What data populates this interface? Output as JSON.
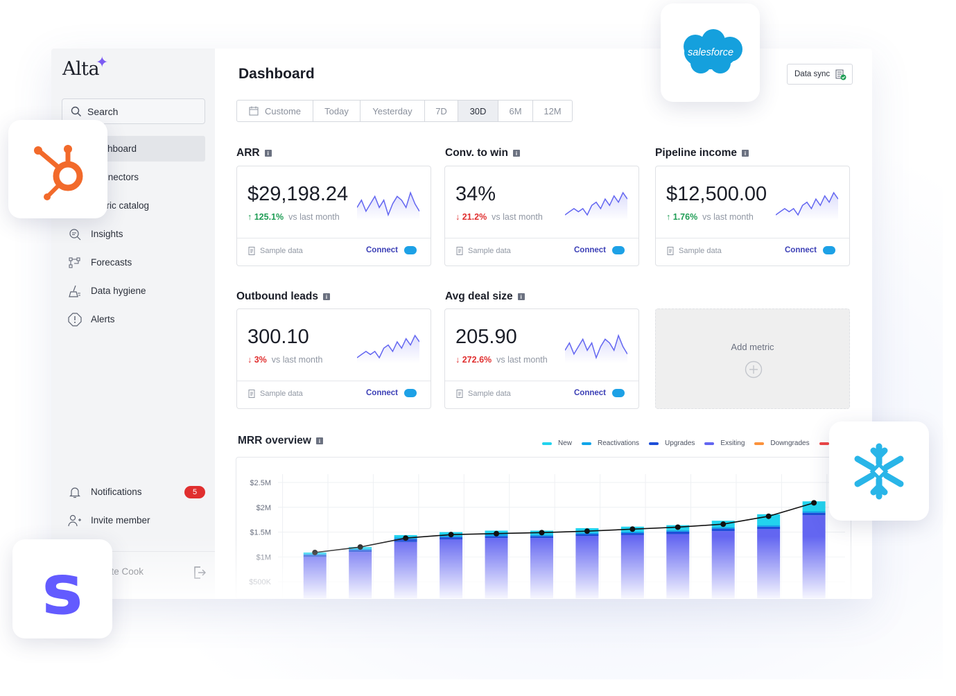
{
  "app": {
    "logo": "Alta",
    "page_title": "Dashboard"
  },
  "sidebar": {
    "search_placeholder": "Search",
    "items": [
      {
        "label": "Dashboard",
        "icon": "grid-icon",
        "active": true
      },
      {
        "label": "Connectors",
        "icon": "plug-icon"
      },
      {
        "label": "Metric catalog",
        "icon": "book-icon"
      },
      {
        "label": "Insights",
        "icon": "insights-icon"
      },
      {
        "label": "Forecasts",
        "icon": "forecast-icon"
      },
      {
        "label": "Data hygiene",
        "icon": "broom-icon"
      },
      {
        "label": "Alerts",
        "icon": "alert-icon"
      }
    ],
    "notifications": {
      "label": "Notifications",
      "count": "5"
    },
    "invite_label": "Invite member",
    "user_name": "Kate Cook"
  },
  "header": {
    "data_sync_label": "Data sync"
  },
  "date_range": {
    "options": [
      "Custome",
      "Today",
      "Yesterday",
      "7D",
      "30D",
      "6M",
      "12M"
    ],
    "selected": "30D"
  },
  "metrics": [
    {
      "title": "ARR",
      "value": "$29,198.24",
      "delta": "125.1%",
      "direction": "up",
      "delta_suffix": "vs last month",
      "footer": "Sample data",
      "action": "Connect",
      "spark": [
        6,
        8,
        5,
        7,
        9,
        6,
        8,
        4,
        7,
        9,
        8,
        6,
        10,
        7,
        5
      ]
    },
    {
      "title": "Conv. to win",
      "value": "34%",
      "delta": "21.2%",
      "direction": "down",
      "delta_suffix": "vs last month",
      "footer": "Sample data",
      "action": "Connect",
      "spark": [
        3,
        4,
        5,
        4,
        5,
        3,
        6,
        7,
        5,
        8,
        6,
        9,
        7,
        10,
        8
      ]
    },
    {
      "title": "Pipeline income",
      "value": "$12,500.00",
      "delta": "1.76%",
      "direction": "up",
      "delta_suffix": "vs last month",
      "footer": "Sample data",
      "action": "Connect",
      "spark": [
        3,
        4,
        5,
        4,
        5,
        3,
        6,
        7,
        5,
        8,
        6,
        9,
        7,
        10,
        8
      ]
    },
    {
      "title": "Outbound leads",
      "value": "300.10",
      "delta": "3%",
      "direction": "down",
      "delta_suffix": "vs last month",
      "footer": "Sample data",
      "action": "Connect",
      "spark": [
        3,
        4,
        5,
        4,
        5,
        3,
        6,
        7,
        5,
        8,
        6,
        9,
        7,
        10,
        8
      ]
    },
    {
      "title": "Avg deal size",
      "value": "205.90",
      "delta": "272.6%",
      "direction": "down",
      "delta_suffix": "vs last month",
      "footer": "Sample data",
      "action": "Connect",
      "spark": [
        6,
        8,
        5,
        7,
        9,
        6,
        8,
        4,
        7,
        9,
        8,
        6,
        10,
        7,
        5
      ]
    }
  ],
  "add_metric_label": "Add metric",
  "mrr": {
    "title": "MRR overview",
    "legend": [
      {
        "name": "New",
        "color": "#22d3ee"
      },
      {
        "name": "Reactivations",
        "color": "#0ea5e9"
      },
      {
        "name": "Upgrades",
        "color": "#1d4ed8"
      },
      {
        "name": "Exsiting",
        "color": "#6366f1"
      },
      {
        "name": "Downgrades",
        "color": "#fb923c"
      },
      {
        "name": "",
        "color": "#ef4444"
      }
    ]
  },
  "chart_data": {
    "type": "bar",
    "title": "MRR overview",
    "y_ticks": [
      "$2.5M",
      "$2M",
      "$1.5M",
      "$1M",
      "$500K"
    ],
    "ylim": [
      0,
      2500000
    ],
    "stacked": true,
    "series": [
      {
        "name": "Exsiting",
        "color": "#6366f1",
        "values": [
          1000000,
          1100000,
          1300000,
          1350000,
          1380000,
          1380000,
          1420000,
          1440000,
          1460000,
          1520000,
          1560000,
          1840000
        ]
      },
      {
        "name": "Upgrades",
        "color": "#1d4ed8",
        "values": [
          40000,
          40000,
          60000,
          50000,
          40000,
          40000,
          40000,
          40000,
          50000,
          50000,
          50000,
          50000
        ]
      },
      {
        "name": "Reactivations",
        "color": "#0ea5e9",
        "values": [
          20000,
          20000,
          30000,
          30000,
          40000,
          30000,
          30000,
          30000,
          30000,
          30000,
          30000,
          30000
        ]
      },
      {
        "name": "New",
        "color": "#22d3ee",
        "values": [
          30000,
          40000,
          50000,
          70000,
          70000,
          80000,
          90000,
          100000,
          100000,
          130000,
          220000,
          200000
        ]
      }
    ],
    "line": {
      "name": "Total",
      "values": [
        1090000,
        1200000,
        1380000,
        1450000,
        1470000,
        1490000,
        1520000,
        1560000,
        1600000,
        1660000,
        1820000,
        2090000
      ]
    },
    "grid": true
  }
}
